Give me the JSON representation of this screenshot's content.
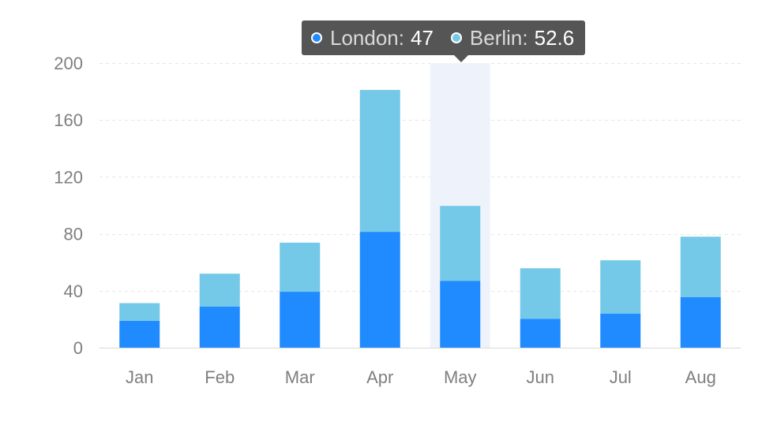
{
  "chart_data": {
    "type": "bar",
    "stacked": true,
    "categories": [
      "Jan",
      "Feb",
      "Mar",
      "Apr",
      "May",
      "Jun",
      "Jul",
      "Aug"
    ],
    "series": [
      {
        "name": "London",
        "color": "#1f8bff",
        "values": [
          18.9,
          28.8,
          39.3,
          81.4,
          47,
          20.3,
          24,
          35.6
        ]
      },
      {
        "name": "Berlin",
        "color": "#74c8e8",
        "values": [
          12.4,
          23.2,
          34.5,
          99.7,
          52.6,
          35.5,
          37.4,
          42.4
        ]
      }
    ],
    "y_ticks": [
      0,
      40,
      80,
      120,
      160,
      200
    ],
    "ylim": [
      0,
      200
    ],
    "grid": true,
    "highlight_category": "May"
  },
  "tooltip": {
    "entries": [
      {
        "name": "London:",
        "value": "47",
        "color": "#1f8bff"
      },
      {
        "name": "Berlin:",
        "value": "52.6",
        "color": "#74c8e8"
      }
    ]
  }
}
